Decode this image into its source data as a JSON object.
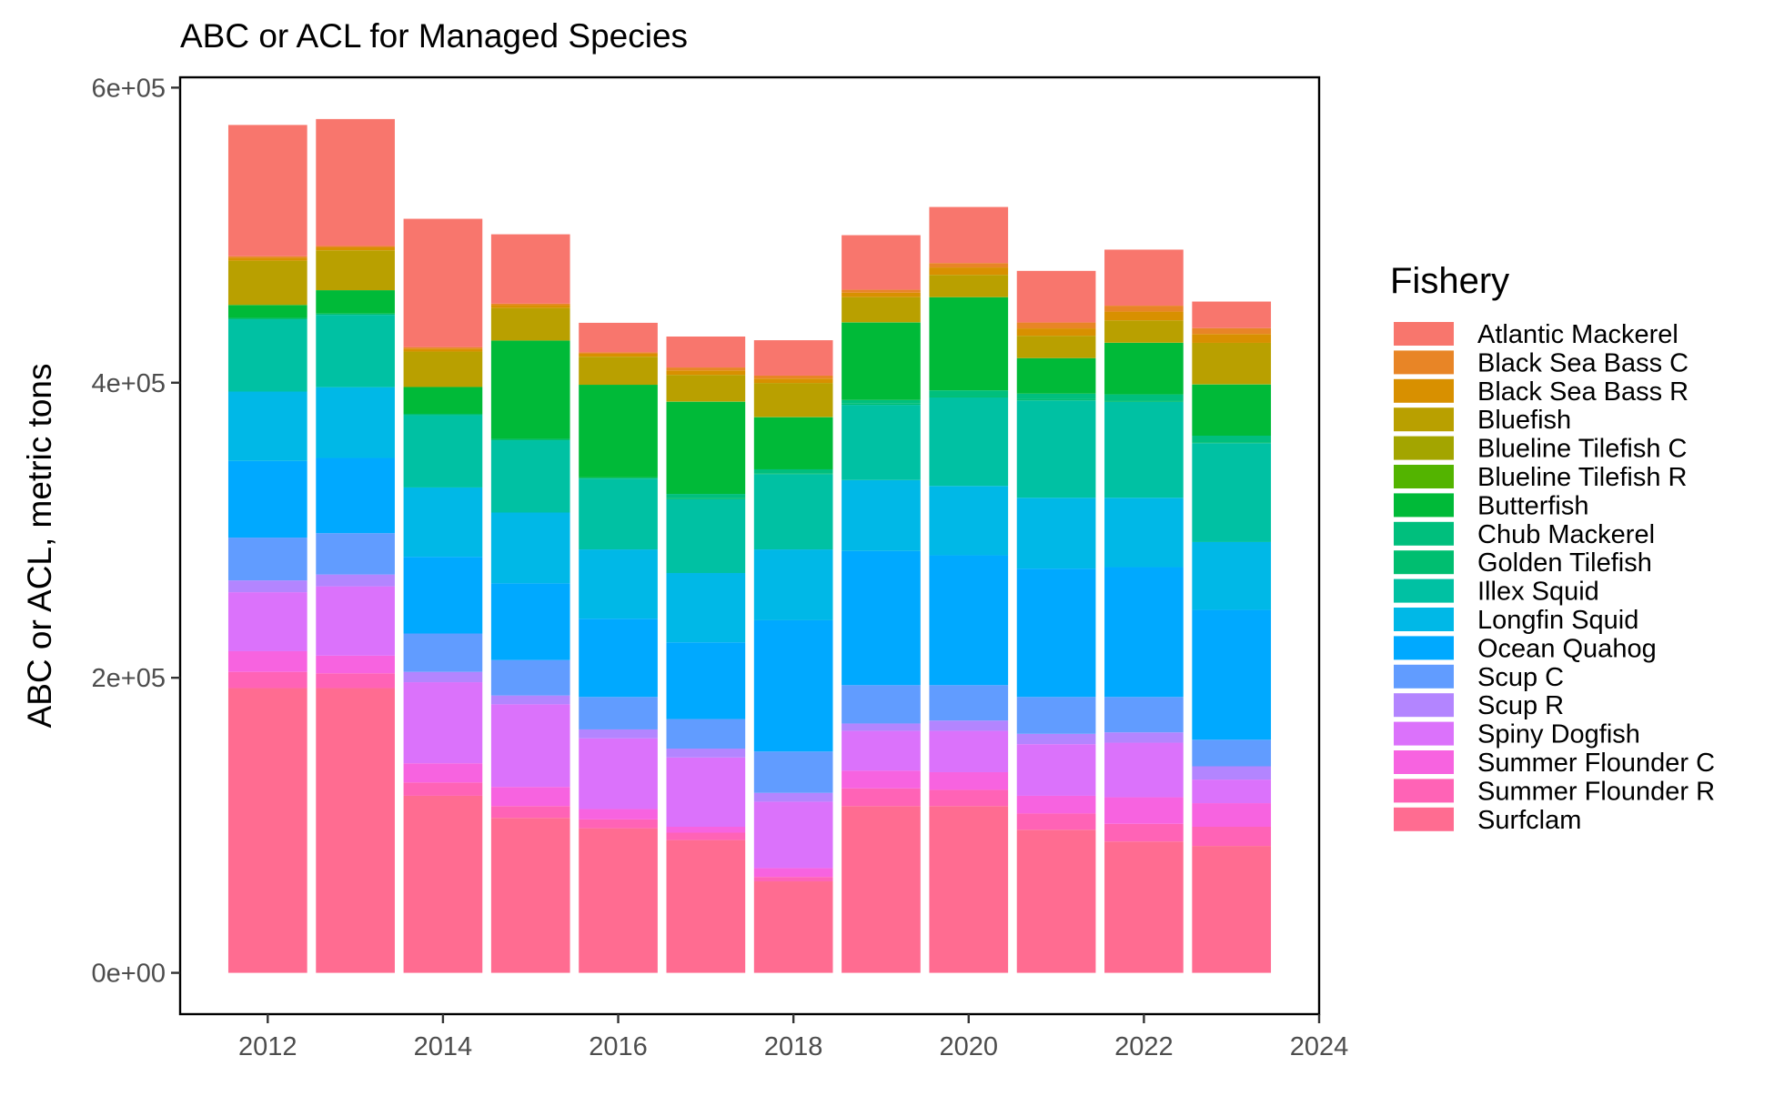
{
  "chart_data": {
    "type": "bar",
    "stacked": true,
    "title": "ABC or ACL for Managed Species",
    "xlabel": "",
    "ylabel": "ABC or ACL, metric tons",
    "xlim": [
      2011,
      2024
    ],
    "ylim": [
      -28000,
      607000
    ],
    "x_ticks": [
      2012,
      2014,
      2016,
      2018,
      2020,
      2022,
      2024
    ],
    "x_tick_labels": [
      "2012",
      "2014",
      "2016",
      "2018",
      "2020",
      "2022",
      "2024"
    ],
    "y_ticks": [
      0,
      200000,
      400000,
      600000
    ],
    "y_tick_labels": [
      "0e+00",
      "2e+05",
      "4e+05",
      "6e+05"
    ],
    "grid": false,
    "legend_title": "Fishery",
    "legend_position": "right",
    "x": [
      2012,
      2013,
      2014,
      2015,
      2016,
      2017,
      2018,
      2019,
      2020,
      2021,
      2022,
      2023
    ],
    "series": [
      {
        "name": "Surfclam",
        "color": "#FF6C91",
        "values": [
          193000,
          193000,
          120000,
          105000,
          98000,
          90000,
          62000,
          113000,
          113000,
          97000,
          89000,
          86000
        ]
      },
      {
        "name": "Summer Flounder R",
        "color": "#FF63B6",
        "values": [
          11000,
          10000,
          9000,
          8000,
          6000,
          5000,
          3000,
          12000,
          11000,
          11000,
          12000,
          13000
        ]
      },
      {
        "name": "Summer Flounder C",
        "color": "#F763E0",
        "values": [
          14000,
          12000,
          13000,
          13000,
          7000,
          4000,
          6000,
          12000,
          12000,
          12000,
          18000,
          16000
        ]
      },
      {
        "name": "Spiny Dogfish",
        "color": "#DB72FB",
        "values": [
          40000,
          47000,
          55000,
          56000,
          48000,
          47000,
          45000,
          27000,
          28000,
          35000,
          37000,
          16000
        ]
      },
      {
        "name": "Scup R",
        "color": "#B385FF",
        "values": [
          8000,
          8000,
          7000,
          6000,
          6000,
          6000,
          6000,
          5000,
          7000,
          7000,
          7000,
          9000
        ]
      },
      {
        "name": "Scup C",
        "color": "#619CFF",
        "values": [
          29000,
          28000,
          26000,
          24000,
          22000,
          20000,
          28000,
          26000,
          24000,
          25000,
          24000,
          18000
        ]
      },
      {
        "name": "Ocean Quahog",
        "color": "#00A9FF",
        "values": [
          52000,
          51000,
          52000,
          52000,
          53000,
          52000,
          89000,
          91000,
          88000,
          87000,
          88000,
          88000
        ]
      },
      {
        "name": "Longfin Squid",
        "color": "#00B8E7",
        "values": [
          47000,
          48000,
          47000,
          48000,
          47000,
          47000,
          48000,
          48000,
          47000,
          48000,
          47000,
          46000
        ]
      },
      {
        "name": "Illex Squid",
        "color": "#00C1A3",
        "values": [
          49000,
          49000,
          49000,
          49000,
          48000,
          50000,
          51000,
          51000,
          60000,
          66000,
          65000,
          67000
        ]
      },
      {
        "name": "Golden Tilefish",
        "color": "#00BE70",
        "values": [
          900,
          900,
          900,
          900,
          800,
          800,
          700,
          800,
          900,
          800,
          800,
          700
        ]
      },
      {
        "name": "Chub Mackerel",
        "color": "#00BF7D",
        "values": [
          0,
          0,
          0,
          0,
          0,
          2800,
          2600,
          2500,
          3900,
          3800,
          4300,
          4400
        ]
      },
      {
        "name": "Butterfish",
        "color": "#00BA38",
        "values": [
          8800,
          15800,
          18200,
          66700,
          62800,
          62500,
          35300,
          52500,
          63100,
          24000,
          34900,
          34700
        ]
      },
      {
        "name": "Blueline Tilefish R",
        "color": "#53B400",
        "values": [
          0,
          0,
          0,
          0,
          0,
          100,
          100,
          100,
          100,
          100,
          100,
          100
        ]
      },
      {
        "name": "Blueline Tilefish C",
        "color": "#A3A500",
        "values": [
          0,
          0,
          0,
          0,
          0,
          100,
          100,
          100,
          100,
          100,
          100,
          100
        ]
      },
      {
        "name": "Bluefish",
        "color": "#B9A000",
        "values": [
          30000,
          27000,
          24000,
          22000,
          19000,
          18000,
          23000,
          17000,
          15000,
          15000,
          15000,
          28000
        ]
      },
      {
        "name": "Black Sea Bass R",
        "color": "#D89000",
        "values": [
          2000,
          2000,
          2000,
          2000,
          2000,
          3000,
          3000,
          3000,
          5000,
          5000,
          6000,
          6000
        ]
      },
      {
        "name": "Black Sea Bass C",
        "color": "#E88526",
        "values": [
          1000,
          1000,
          1000,
          1000,
          1000,
          2000,
          2000,
          2000,
          3000,
          4000,
          4000,
          4000
        ]
      },
      {
        "name": "Atlantic Mackerel",
        "color": "#F8766D",
        "values": [
          89000,
          86000,
          87000,
          47000,
          20000,
          21000,
          24000,
          37000,
          38000,
          35000,
          38000,
          18000
        ]
      }
    ]
  }
}
